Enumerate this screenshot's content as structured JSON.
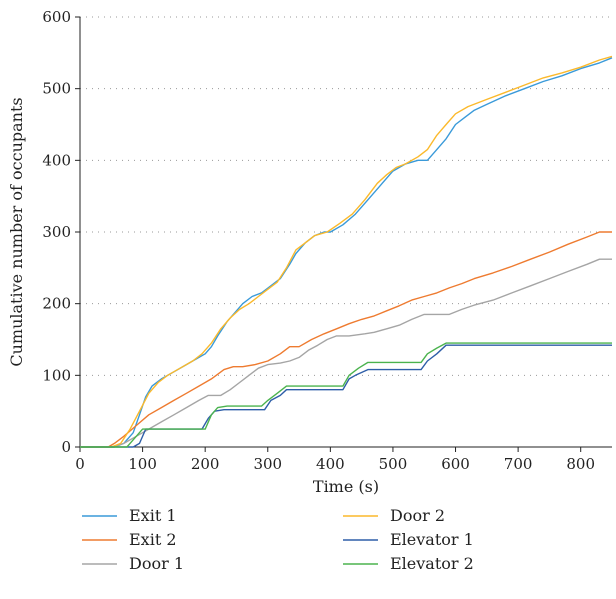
{
  "chart_data": {
    "type": "line",
    "xlabel": "Time (s)",
    "ylabel": "Cumulative number of occupants",
    "xlim": [
      0,
      850
    ],
    "ylim": [
      0,
      600
    ],
    "xticks": [
      0,
      100,
      200,
      300,
      400,
      500,
      600,
      700,
      800
    ],
    "yticks": [
      0,
      100,
      200,
      300,
      400,
      500,
      600
    ],
    "grid": "horizontal-dotted",
    "legend_position": "bottom",
    "series": [
      {
        "name": "Exit 1",
        "color": "#3a9ad9",
        "points": [
          [
            0,
            0
          ],
          [
            55,
            0
          ],
          [
            70,
            5
          ],
          [
            85,
            20
          ],
          [
            95,
            45
          ],
          [
            105,
            70
          ],
          [
            115,
            85
          ],
          [
            130,
            95
          ],
          [
            150,
            105
          ],
          [
            170,
            115
          ],
          [
            190,
            125
          ],
          [
            200,
            130
          ],
          [
            210,
            140
          ],
          [
            220,
            155
          ],
          [
            235,
            175
          ],
          [
            250,
            190
          ],
          [
            260,
            200
          ],
          [
            275,
            210
          ],
          [
            290,
            215
          ],
          [
            305,
            225
          ],
          [
            320,
            235
          ],
          [
            335,
            255
          ],
          [
            345,
            270
          ],
          [
            360,
            285
          ],
          [
            375,
            295
          ],
          [
            390,
            300
          ],
          [
            400,
            300
          ],
          [
            420,
            310
          ],
          [
            440,
            325
          ],
          [
            460,
            345
          ],
          [
            480,
            365
          ],
          [
            500,
            385
          ],
          [
            520,
            395
          ],
          [
            540,
            400
          ],
          [
            555,
            400
          ],
          [
            570,
            415
          ],
          [
            585,
            430
          ],
          [
            600,
            450
          ],
          [
            615,
            460
          ],
          [
            630,
            470
          ],
          [
            650,
            478
          ],
          [
            680,
            490
          ],
          [
            710,
            500
          ],
          [
            740,
            510
          ],
          [
            770,
            518
          ],
          [
            800,
            528
          ],
          [
            830,
            536
          ],
          [
            850,
            543
          ]
        ]
      },
      {
        "name": "Exit 2",
        "color": "#ee7b30",
        "points": [
          [
            0,
            0
          ],
          [
            45,
            0
          ],
          [
            55,
            5
          ],
          [
            70,
            15
          ],
          [
            90,
            30
          ],
          [
            110,
            45
          ],
          [
            130,
            55
          ],
          [
            150,
            65
          ],
          [
            170,
            75
          ],
          [
            190,
            85
          ],
          [
            210,
            95
          ],
          [
            230,
            108
          ],
          [
            245,
            112
          ],
          [
            260,
            112
          ],
          [
            280,
            115
          ],
          [
            300,
            120
          ],
          [
            320,
            130
          ],
          [
            335,
            140
          ],
          [
            350,
            140
          ],
          [
            370,
            150
          ],
          [
            390,
            158
          ],
          [
            410,
            165
          ],
          [
            430,
            172
          ],
          [
            450,
            178
          ],
          [
            470,
            183
          ],
          [
            490,
            190
          ],
          [
            510,
            197
          ],
          [
            530,
            205
          ],
          [
            550,
            210
          ],
          [
            570,
            215
          ],
          [
            590,
            222
          ],
          [
            610,
            228
          ],
          [
            630,
            235
          ],
          [
            660,
            243
          ],
          [
            690,
            252
          ],
          [
            720,
            262
          ],
          [
            750,
            272
          ],
          [
            780,
            283
          ],
          [
            810,
            293
          ],
          [
            830,
            300
          ],
          [
            850,
            300
          ]
        ]
      },
      {
        "name": "Door 1",
        "color": "#a5a5a5",
        "points": [
          [
            0,
            0
          ],
          [
            55,
            0
          ],
          [
            70,
            5
          ],
          [
            90,
            15
          ],
          [
            110,
            25
          ],
          [
            130,
            35
          ],
          [
            150,
            45
          ],
          [
            170,
            55
          ],
          [
            190,
            65
          ],
          [
            205,
            72
          ],
          [
            225,
            72
          ],
          [
            240,
            80
          ],
          [
            255,
            90
          ],
          [
            270,
            100
          ],
          [
            285,
            110
          ],
          [
            300,
            115
          ],
          [
            320,
            117
          ],
          [
            335,
            120
          ],
          [
            350,
            125
          ],
          [
            365,
            135
          ],
          [
            380,
            142
          ],
          [
            395,
            150
          ],
          [
            410,
            155
          ],
          [
            430,
            155
          ],
          [
            455,
            158
          ],
          [
            470,
            160
          ],
          [
            490,
            165
          ],
          [
            510,
            170
          ],
          [
            530,
            178
          ],
          [
            550,
            185
          ],
          [
            590,
            185
          ],
          [
            610,
            192
          ],
          [
            630,
            198
          ],
          [
            660,
            205
          ],
          [
            690,
            215
          ],
          [
            720,
            225
          ],
          [
            750,
            235
          ],
          [
            780,
            245
          ],
          [
            810,
            255
          ],
          [
            830,
            262
          ],
          [
            850,
            262
          ]
        ]
      },
      {
        "name": "Door 2",
        "color": "#fbb92b",
        "points": [
          [
            0,
            0
          ],
          [
            50,
            0
          ],
          [
            65,
            5
          ],
          [
            80,
            25
          ],
          [
            95,
            50
          ],
          [
            110,
            75
          ],
          [
            125,
            90
          ],
          [
            140,
            100
          ],
          [
            160,
            110
          ],
          [
            180,
            120
          ],
          [
            195,
            130
          ],
          [
            210,
            145
          ],
          [
            225,
            165
          ],
          [
            240,
            180
          ],
          [
            255,
            192
          ],
          [
            270,
            200
          ],
          [
            285,
            210
          ],
          [
            300,
            220
          ],
          [
            315,
            230
          ],
          [
            330,
            250
          ],
          [
            345,
            275
          ],
          [
            360,
            285
          ],
          [
            375,
            295
          ],
          [
            395,
            300
          ],
          [
            415,
            312
          ],
          [
            435,
            325
          ],
          [
            455,
            345
          ],
          [
            475,
            368
          ],
          [
            490,
            380
          ],
          [
            505,
            390
          ],
          [
            520,
            395
          ],
          [
            540,
            405
          ],
          [
            555,
            415
          ],
          [
            570,
            435
          ],
          [
            585,
            450
          ],
          [
            600,
            465
          ],
          [
            620,
            475
          ],
          [
            650,
            485
          ],
          [
            680,
            495
          ],
          [
            710,
            505
          ],
          [
            740,
            515
          ],
          [
            770,
            522
          ],
          [
            800,
            530
          ],
          [
            830,
            540
          ],
          [
            850,
            545
          ]
        ]
      },
      {
        "name": "Elevator 1",
        "color": "#2e5ea8",
        "points": [
          [
            0,
            0
          ],
          [
            85,
            0
          ],
          [
            95,
            5
          ],
          [
            105,
            25
          ],
          [
            115,
            25
          ],
          [
            195,
            25
          ],
          [
            205,
            40
          ],
          [
            215,
            50
          ],
          [
            230,
            52
          ],
          [
            295,
            52
          ],
          [
            305,
            65
          ],
          [
            320,
            72
          ],
          [
            330,
            80
          ],
          [
            420,
            80
          ],
          [
            430,
            95
          ],
          [
            440,
            100
          ],
          [
            460,
            108
          ],
          [
            545,
            108
          ],
          [
            555,
            120
          ],
          [
            570,
            130
          ],
          [
            585,
            142
          ],
          [
            600,
            142
          ],
          [
            850,
            142
          ]
        ]
      },
      {
        "name": "Elevator 2",
        "color": "#4bb34e",
        "points": [
          [
            0,
            0
          ],
          [
            75,
            0
          ],
          [
            85,
            10
          ],
          [
            100,
            25
          ],
          [
            200,
            25
          ],
          [
            210,
            45
          ],
          [
            220,
            55
          ],
          [
            235,
            57
          ],
          [
            290,
            57
          ],
          [
            300,
            65
          ],
          [
            315,
            75
          ],
          [
            330,
            85
          ],
          [
            420,
            85
          ],
          [
            430,
            100
          ],
          [
            445,
            110
          ],
          [
            460,
            118
          ],
          [
            545,
            118
          ],
          [
            555,
            130
          ],
          [
            570,
            138
          ],
          [
            585,
            145
          ],
          [
            600,
            145
          ],
          [
            850,
            145
          ]
        ]
      }
    ]
  }
}
